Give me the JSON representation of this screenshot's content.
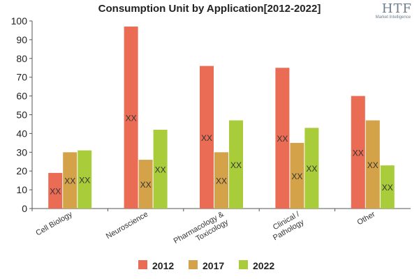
{
  "chart_data": {
    "type": "bar",
    "title": "Consumption Unit by  Application[2012-2022]",
    "categories": [
      "Cell Biology",
      "Neuroscience",
      "Pharmacology & Toxicology",
      "Clinical / Pathology",
      "Other"
    ],
    "category_lines": [
      [
        "Cell Biology"
      ],
      [
        "Neuroscience"
      ],
      [
        "Pharmacology &",
        "Toxicology"
      ],
      [
        "Clinical /",
        "Pathology"
      ],
      [
        "Other"
      ]
    ],
    "series": [
      {
        "name": "2012",
        "color": "#ea6c55",
        "values": [
          19,
          97,
          76,
          75,
          60
        ]
      },
      {
        "name": "2017",
        "color": "#d4a349",
        "values": [
          30,
          26,
          30,
          35,
          47
        ]
      },
      {
        "name": "2022",
        "color": "#a9cd3a",
        "values": [
          31,
          42,
          47,
          43,
          23
        ]
      }
    ],
    "data_label": "XX",
    "ylim": [
      0,
      100
    ],
    "yticks": [
      0,
      10,
      20,
      30,
      40,
      50,
      60,
      70,
      80,
      90,
      100
    ],
    "xlabel": "",
    "ylabel": "",
    "grid": false,
    "legend": "bottom"
  },
  "logo": {
    "text": "HTF",
    "subtitle": "Market Intelligence"
  }
}
